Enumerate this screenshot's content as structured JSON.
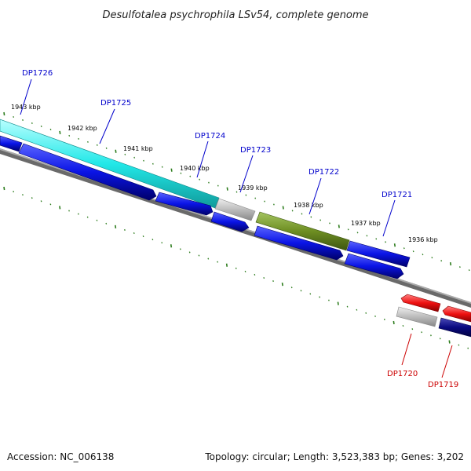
{
  "title": "Desulfotalea psychrophila LSv54, complete genome",
  "footer": {
    "accession": "Accession: NC_006138",
    "summary": "Topology: circular; Length: 3,523,383 bp; Genes: 3,202"
  },
  "colors": {
    "background": "#ffffff",
    "backbone": "#7a7a7a",
    "tick": "#2e7d1e",
    "forward_label": "#0000cc",
    "reverse_label": "#cc0000"
  },
  "scale": {
    "unit": "kbp",
    "ticks": [
      {
        "label": "1943 kbp"
      },
      {
        "label": "1942 kbp"
      },
      {
        "label": "1941 kbp"
      },
      {
        "label": "1940 kbp"
      },
      {
        "label": "1939 kbp"
      },
      {
        "label": "1938 kbp"
      },
      {
        "label": "1937 kbp"
      },
      {
        "label": "1936 kbp"
      }
    ]
  },
  "genes": [
    {
      "label": "DP1726",
      "strand": "forward"
    },
    {
      "label": "DP1725",
      "strand": "forward"
    },
    {
      "label": "DP1724",
      "strand": "forward"
    },
    {
      "label": "DP1723",
      "strand": "forward"
    },
    {
      "label": "DP1722",
      "strand": "forward"
    },
    {
      "label": "DP1721",
      "strand": "forward"
    },
    {
      "label": "DP1720",
      "strand": "reverse"
    },
    {
      "label": "DP1719",
      "strand": "reverse"
    }
  ],
  "feature_colors": {
    "cds_blue": "#0a14e6",
    "cyan_track": "#22e8e8",
    "olive_track": "#6e8e22",
    "gray_track": "#b8b8b8",
    "red_track": "#ee1010",
    "navy_track": "#0a0a80"
  }
}
